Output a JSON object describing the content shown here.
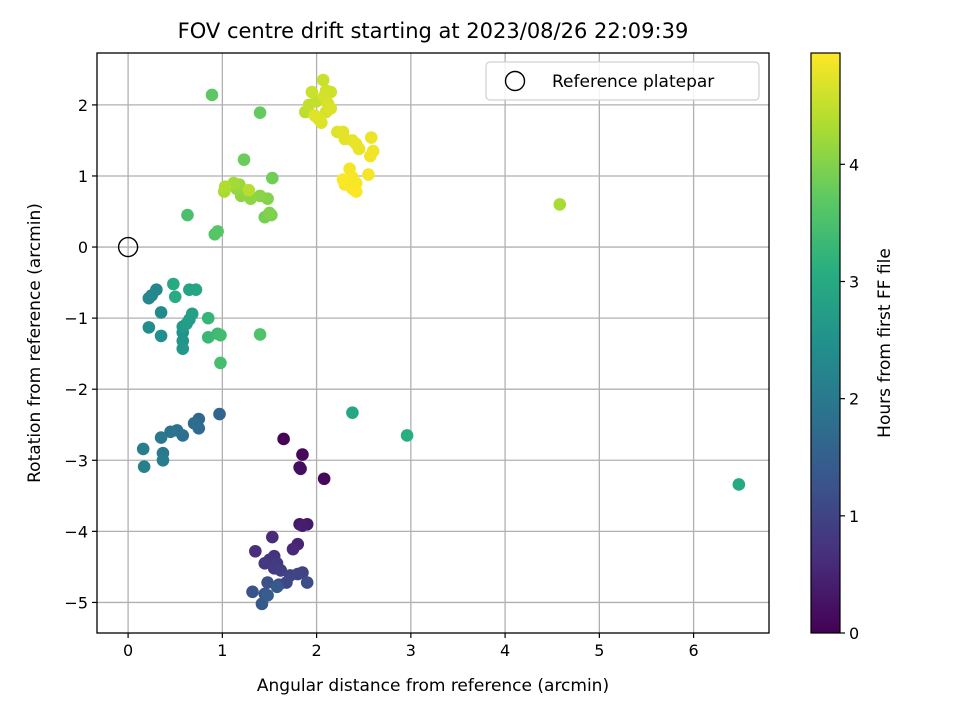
{
  "chart_data": {
    "type": "scatter",
    "title": "FOV centre drift starting at 2023/08/26 22:09:39",
    "xlabel": "Angular distance from reference (arcmin)",
    "ylabel": "Rotation from reference (arcmin)",
    "xlim": [
      -0.33,
      6.8
    ],
    "ylim": [
      -5.43,
      2.73
    ],
    "xticks": [
      0,
      1,
      2,
      3,
      4,
      5,
      6
    ],
    "yticks": [
      -5,
      -4,
      -3,
      -2,
      -1,
      0,
      1,
      2
    ],
    "xtick_labels": [
      "0",
      "1",
      "2",
      "3",
      "4",
      "5",
      "6"
    ],
    "ytick_labels": [
      "−5",
      "−4",
      "−3",
      "−2",
      "−1",
      "0",
      "1",
      "2"
    ],
    "grid": true,
    "legend": {
      "placement": "top-right",
      "entries": [
        {
          "label": "Reference platepar",
          "marker": "open-circle"
        }
      ]
    },
    "reference_point": {
      "x": 0,
      "y": 0
    },
    "colorbar": {
      "label": "Hours from first FF file",
      "range": [
        0,
        4.95
      ],
      "ticks": [
        0,
        1,
        2,
        3,
        4
      ],
      "tick_labels": [
        "0",
        "1",
        "2",
        "3",
        "4"
      ],
      "colormap": "viridis"
    },
    "series": [
      {
        "points": [
          [
            1.65,
            -2.7,
            0.05
          ],
          [
            1.85,
            -2.92,
            0.1
          ],
          [
            1.82,
            -3.1,
            0.15
          ],
          [
            1.83,
            -3.12,
            0.2
          ],
          [
            2.08,
            -3.26,
            0.1
          ],
          [
            1.82,
            -3.9,
            0.3
          ],
          [
            1.9,
            -3.9,
            0.35
          ],
          [
            1.85,
            -3.92,
            0.4
          ],
          [
            1.8,
            -4.18,
            0.5
          ],
          [
            1.75,
            -4.25,
            0.55
          ],
          [
            1.53,
            -4.08,
            0.6
          ],
          [
            1.35,
            -4.28,
            0.65
          ],
          [
            1.55,
            -4.35,
            0.7
          ],
          [
            1.5,
            -4.4,
            0.75
          ],
          [
            1.58,
            -4.45,
            0.8
          ],
          [
            1.45,
            -4.45,
            0.8
          ],
          [
            1.55,
            -4.52,
            0.85
          ],
          [
            1.62,
            -4.55,
            0.9
          ],
          [
            1.85,
            -4.58,
            0.95
          ],
          [
            1.8,
            -4.6,
            1.0
          ],
          [
            1.72,
            -4.62,
            1.0
          ],
          [
            1.68,
            -4.72,
            1.05
          ],
          [
            1.6,
            -4.75,
            1.1
          ],
          [
            1.9,
            -4.72,
            1.15
          ],
          [
            1.48,
            -4.72,
            1.2
          ],
          [
            1.32,
            -4.85,
            1.25
          ],
          [
            1.45,
            -4.88,
            1.3
          ],
          [
            1.42,
            -5.02,
            1.35
          ],
          [
            1.58,
            -4.78,
            1.4
          ],
          [
            1.48,
            -4.9,
            1.45
          ],
          [
            0.97,
            -2.35,
            1.6
          ],
          [
            0.75,
            -2.42,
            1.65
          ],
          [
            0.75,
            -2.55,
            1.7
          ],
          [
            0.7,
            -2.48,
            1.75
          ],
          [
            0.58,
            -2.65,
            1.8
          ],
          [
            0.52,
            -2.58,
            1.85
          ],
          [
            0.45,
            -2.6,
            1.9
          ],
          [
            0.35,
            -2.68,
            1.95
          ],
          [
            0.37,
            -2.9,
            2.0
          ],
          [
            0.37,
            -3.0,
            2.05
          ],
          [
            0.16,
            -2.84,
            2.1
          ],
          [
            0.17,
            -3.09,
            2.15
          ],
          [
            0.25,
            -0.68,
            2.2
          ],
          [
            0.3,
            -0.6,
            2.25
          ],
          [
            0.22,
            -0.72,
            2.3
          ],
          [
            0.35,
            -0.92,
            2.35
          ],
          [
            0.22,
            -1.13,
            2.4
          ],
          [
            0.35,
            -1.25,
            2.45
          ],
          [
            0.58,
            -1.2,
            2.5
          ],
          [
            0.58,
            -1.32,
            2.55
          ],
          [
            0.58,
            -1.43,
            2.6
          ],
          [
            0.58,
            -1.12,
            2.65
          ],
          [
            0.62,
            -1.08,
            2.7
          ],
          [
            0.65,
            -1.02,
            2.75
          ],
          [
            0.68,
            -0.94,
            2.8
          ],
          [
            0.65,
            -0.6,
            2.85
          ],
          [
            0.72,
            -0.6,
            2.9
          ],
          [
            0.48,
            -0.52,
            3.0
          ],
          [
            0.5,
            -0.7,
            3.05
          ],
          [
            2.38,
            -2.33,
            2.95
          ],
          [
            2.96,
            -2.65,
            3.1
          ],
          [
            6.48,
            -3.34,
            3.0
          ],
          [
            0.85,
            -1.0,
            3.25
          ],
          [
            0.85,
            -1.27,
            3.3
          ],
          [
            0.95,
            -1.22,
            3.35
          ],
          [
            0.98,
            -1.24,
            3.4
          ],
          [
            0.98,
            -1.63,
            3.45
          ],
          [
            1.4,
            -1.23,
            3.55
          ],
          [
            0.92,
            0.18,
            3.6
          ],
          [
            0.95,
            0.22,
            3.62
          ],
          [
            0.63,
            0.45,
            3.5
          ],
          [
            0.89,
            2.14,
            3.7
          ],
          [
            1.4,
            1.89,
            3.75
          ],
          [
            1.23,
            1.23,
            3.8
          ],
          [
            1.53,
            0.97,
            3.85
          ],
          [
            1.45,
            0.42,
            3.9
          ],
          [
            1.52,
            0.45,
            3.95
          ],
          [
            1.5,
            0.48,
            3.98
          ],
          [
            1.48,
            0.68,
            4.0
          ],
          [
            1.4,
            0.72,
            4.05
          ],
          [
            1.3,
            0.68,
            4.1
          ],
          [
            1.2,
            0.72,
            4.1
          ],
          [
            1.15,
            0.82,
            4.15
          ],
          [
            1.18,
            0.88,
            4.2
          ],
          [
            1.12,
            0.9,
            4.25
          ],
          [
            1.02,
            0.78,
            4.3
          ],
          [
            1.03,
            0.85,
            4.35
          ],
          [
            1.28,
            0.8,
            4.4
          ],
          [
            4.58,
            0.6,
            4.3
          ],
          [
            1.88,
            1.9,
            4.45
          ],
          [
            1.92,
            2.0,
            4.5
          ],
          [
            2.0,
            2.05,
            4.5
          ],
          [
            1.95,
            2.18,
            4.55
          ],
          [
            2.07,
            2.35,
            4.55
          ],
          [
            2.1,
            2.2,
            4.6
          ],
          [
            2.15,
            2.18,
            4.6
          ],
          [
            2.08,
            2.12,
            4.62
          ],
          [
            2.12,
            2.02,
            4.65
          ],
          [
            2.1,
            1.9,
            4.65
          ],
          [
            2.15,
            1.95,
            4.68
          ],
          [
            2.02,
            1.8,
            4.7
          ],
          [
            2.05,
            1.75,
            4.7
          ],
          [
            1.98,
            1.85,
            4.72
          ],
          [
            2.22,
            1.62,
            4.72
          ],
          [
            2.28,
            1.62,
            4.75
          ],
          [
            2.3,
            1.52,
            4.75
          ],
          [
            2.38,
            1.5,
            4.78
          ],
          [
            2.42,
            1.45,
            4.8
          ],
          [
            2.45,
            1.38,
            4.8
          ],
          [
            2.58,
            1.54,
            4.82
          ],
          [
            2.6,
            1.35,
            4.85
          ],
          [
            2.57,
            1.28,
            4.85
          ],
          [
            2.35,
            1.1,
            4.88
          ],
          [
            2.55,
            1.02,
            4.88
          ],
          [
            2.38,
            0.98,
            4.9
          ],
          [
            2.42,
            0.9,
            4.9
          ],
          [
            2.3,
            0.88,
            4.92
          ],
          [
            2.38,
            0.82,
            4.92
          ],
          [
            2.28,
            0.95,
            4.93
          ],
          [
            2.42,
            0.78,
            4.95
          ]
        ]
      }
    ]
  }
}
